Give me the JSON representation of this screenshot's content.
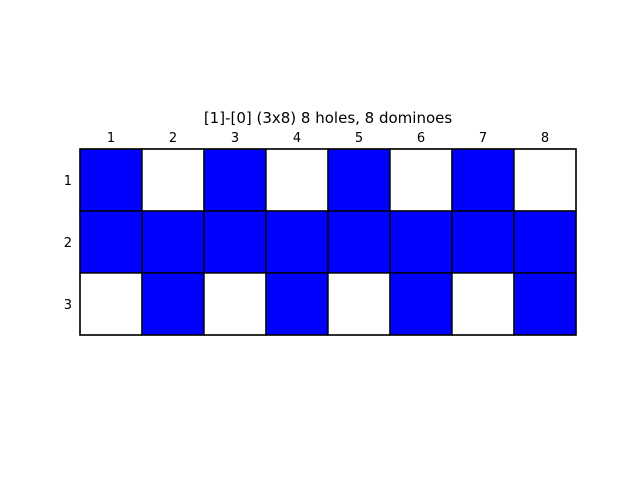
{
  "title": "[1]-[0]  (3x8) 8 holes, 8 dominoes",
  "grid": {
    "rows": 3,
    "cols": 8,
    "col_labels": [
      "1",
      "2",
      "3",
      "4",
      "5",
      "6",
      "7",
      "8"
    ],
    "row_labels": [
      "1",
      "2",
      "3"
    ],
    "cells": [
      [
        1,
        0,
        1,
        0,
        1,
        0,
        1,
        0
      ],
      [
        1,
        1,
        1,
        1,
        1,
        1,
        1,
        1
      ],
      [
        0,
        1,
        0,
        1,
        0,
        1,
        0,
        1
      ]
    ]
  },
  "colors": {
    "filled": "#0000ff",
    "empty": "#ffffff",
    "border": "#000000"
  }
}
